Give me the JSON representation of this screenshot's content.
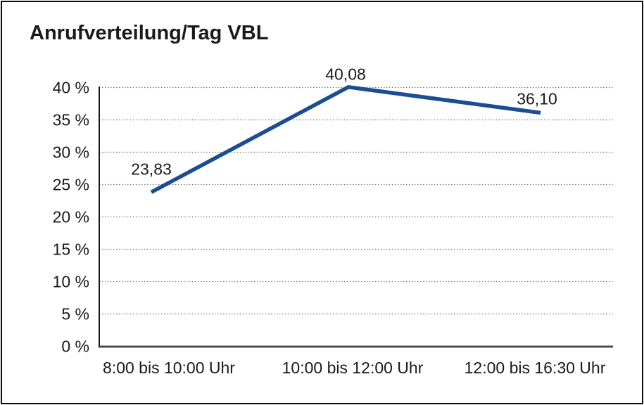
{
  "chart_data": {
    "type": "line",
    "title": "Anrufverteilung/Tag VBL",
    "categories": [
      "8:00 bis 10:00 Uhr",
      "10:00 bis 12:00 Uhr",
      "12:00 bis 16:30 Uhr"
    ],
    "values": [
      23.83,
      40.08,
      36.1
    ],
    "point_labels": [
      "23,83",
      "40,08",
      "36,10"
    ],
    "xlabel": "",
    "ylabel": "",
    "ylim": [
      0,
      40
    ],
    "yticks": [
      {
        "value": 0,
        "label": "0 %"
      },
      {
        "value": 5,
        "label": "5 %"
      },
      {
        "value": 10,
        "label": "10 %"
      },
      {
        "value": 15,
        "label": "15 %"
      },
      {
        "value": 20,
        "label": "20 %"
      },
      {
        "value": 25,
        "label": "25 %"
      },
      {
        "value": 30,
        "label": "30 %"
      },
      {
        "value": 35,
        "label": "35 %"
      },
      {
        "value": 40,
        "label": "40 %"
      }
    ],
    "grid": {
      "horizontal": true,
      "vertical": false,
      "style": "dotted"
    },
    "legend_position": "none",
    "markers": "none",
    "colors": {
      "line": "#1b4d91",
      "text": "#1a1a1a",
      "grid": "#6e6e6e",
      "x_axis": "#4e4e4e",
      "y_axis": "#1a1a1a",
      "background": "#ffffff",
      "border": "#0a0a0a"
    }
  }
}
